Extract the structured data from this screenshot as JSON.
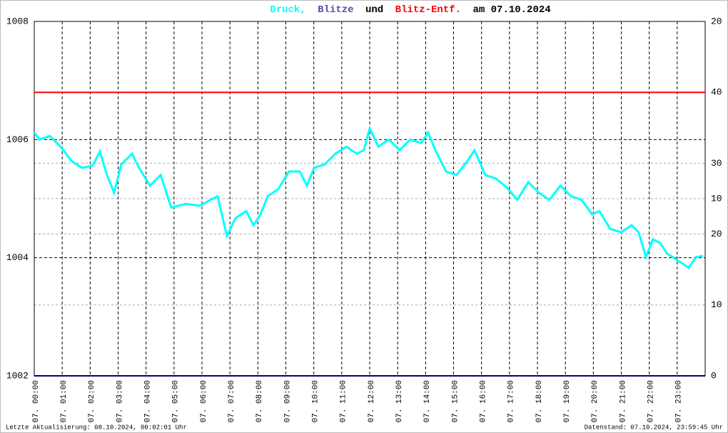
{
  "chart_data": {
    "type": "line",
    "title_words": [
      "und",
      "am 07.10.2024"
    ],
    "xlim": [
      0,
      24
    ],
    "xticks": [
      {
        "value": 0,
        "label": "07. 00:00"
      },
      {
        "value": 1,
        "label": "07. 01:00"
      },
      {
        "value": 2,
        "label": "07. 02:00"
      },
      {
        "value": 3,
        "label": "07. 03:00"
      },
      {
        "value": 4,
        "label": "07. 04:00"
      },
      {
        "value": 5,
        "label": "07. 05:00"
      },
      {
        "value": 6,
        "label": "07. 06:00"
      },
      {
        "value": 7,
        "label": "07. 07:00"
      },
      {
        "value": 8,
        "label": "07. 08:00"
      },
      {
        "value": 9,
        "label": "07. 09:00"
      },
      {
        "value": 10,
        "label": "07. 10:00"
      },
      {
        "value": 11,
        "label": "07. 11:00"
      },
      {
        "value": 12,
        "label": "07. 12:00"
      },
      {
        "value": 13,
        "label": "07. 13:00"
      },
      {
        "value": 14,
        "label": "07. 14:00"
      },
      {
        "value": 15,
        "label": "07. 15:00"
      },
      {
        "value": 16,
        "label": "07. 16:00"
      },
      {
        "value": 17,
        "label": "07. 17:00"
      },
      {
        "value": 18,
        "label": "07. 18:00"
      },
      {
        "value": 19,
        "label": "07. 19:00"
      },
      {
        "value": 20,
        "label": "07. 20:00"
      },
      {
        "value": 21,
        "label": "07. 21:00"
      },
      {
        "value": 22,
        "label": "07. 22:00"
      },
      {
        "value": 23,
        "label": "07. 23:00"
      }
    ],
    "ylim": [
      1002,
      1008
    ],
    "yticks": [
      1002,
      1004,
      1006,
      1008
    ],
    "y2lim": [
      0,
      20
    ],
    "y2ticks": [
      0,
      10,
      20
    ],
    "y3lim": [
      0,
      50
    ],
    "y3ticks": [
      10,
      20,
      30,
      40
    ],
    "grid": true,
    "series": [
      {
        "name": "Druck,",
        "color": "#00ffff",
        "x": [
          0.0,
          0.18,
          0.56,
          0.94,
          1.33,
          1.71,
          2.09,
          2.35,
          2.6,
          2.86,
          3.11,
          3.5,
          3.75,
          4.14,
          4.52,
          4.9,
          5.41,
          5.92,
          6.31,
          6.56,
          6.89,
          7.2,
          7.58,
          7.84,
          8.09,
          8.35,
          8.73,
          9.11,
          9.5,
          9.75,
          10.01,
          10.39,
          10.77,
          11.16,
          11.54,
          11.79,
          12.0,
          12.31,
          12.69,
          13.07,
          13.45,
          13.84,
          14.09,
          14.35,
          14.73,
          15.11,
          15.5,
          15.75,
          16.13,
          16.52,
          16.9,
          17.28,
          17.67,
          18.05,
          18.43,
          18.82,
          19.2,
          19.58,
          19.96,
          20.22,
          20.6,
          20.99,
          21.37,
          21.62,
          21.88,
          22.13,
          22.39,
          22.64,
          23.03,
          23.41,
          23.67,
          23.92
        ],
        "values": [
          1006.12,
          1006.0,
          1006.06,
          1005.88,
          1005.64,
          1005.52,
          1005.56,
          1005.8,
          1005.4,
          1005.1,
          1005.58,
          1005.76,
          1005.52,
          1005.22,
          1005.4,
          1004.85,
          1004.91,
          1004.88,
          1004.98,
          1005.04,
          1004.37,
          1004.67,
          1004.79,
          1004.55,
          1004.73,
          1005.04,
          1005.16,
          1005.46,
          1005.46,
          1005.22,
          1005.52,
          1005.58,
          1005.76,
          1005.88,
          1005.76,
          1005.82,
          1006.19,
          1005.88,
          1006.0,
          1005.82,
          1006.0,
          1005.94,
          1006.12,
          1005.82,
          1005.46,
          1005.4,
          1005.64,
          1005.82,
          1005.4,
          1005.34,
          1005.19,
          1004.98,
          1005.28,
          1005.1,
          1004.98,
          1005.22,
          1005.04,
          1004.98,
          1004.73,
          1004.79,
          1004.49,
          1004.43,
          1004.55,
          1004.43,
          1004.01,
          1004.31,
          1004.25,
          1004.07,
          1003.95,
          1003.83,
          1004.01,
          1004.03
        ]
      },
      {
        "name": "Blitze",
        "color": "#5050b0",
        "axis": "y2",
        "x": [
          0,
          24
        ],
        "values": [
          0,
          0
        ],
        "line_color": "#000080"
      },
      {
        "name": "Blitz-Entf.",
        "color": "#ff0000",
        "axis": "y3",
        "x": [
          0,
          24
        ],
        "values": [
          40,
          40
        ]
      }
    ],
    "footer_left": "Letzte Aktualisierung: 08.10.2024, 00:02:01 Uhr",
    "footer_right": "Datenstand: 07.10.2024, 23:59:45 Uhr"
  }
}
